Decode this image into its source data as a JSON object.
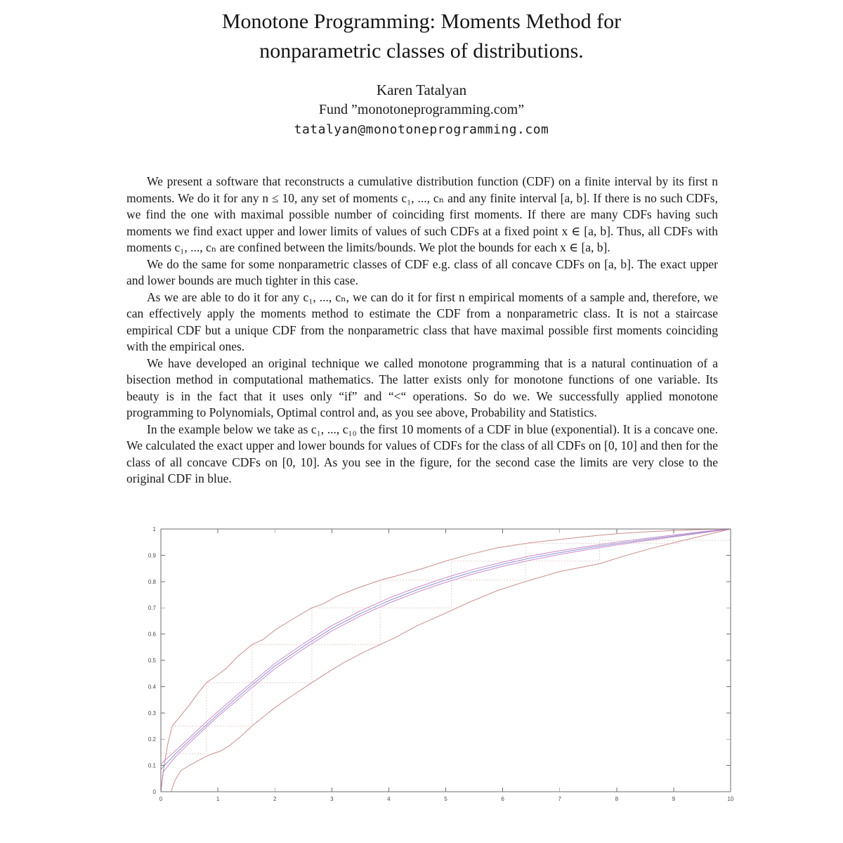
{
  "paper": {
    "title_line1": "Monotone Programming: Moments Method for",
    "title_line2": "nonparametric classes of distributions.",
    "author": "Karen Tatalyan",
    "affiliation": "Fund ”monotoneprogramming.com”",
    "email": "tatalyan@monotoneprogramming.com",
    "paragraphs": [
      "We present a software that reconstructs a cumulative distribution function (CDF) on a finite interval by its first n moments. We do it for any n ≤ 10, any set of moments c₁, ..., cₙ and any finite interval [a, b]. If there is no such CDFs, we find the one with maximal possible number of coinciding first moments. If there are many CDFs having such moments we find exact upper and lower limits of values of such CDFs at a fixed point x ∈ [a, b]. Thus, all CDFs with moments c₁, ..., cₙ are confined between the limits/bounds. We plot the bounds for each x ∈ [a, b].",
      "We do the same for some nonparametric classes of CDF e.g. class of all concave CDFs on [a, b]. The exact upper and lower bounds are much tighter in this case.",
      "As we are able to do it for any c₁, ..., cₙ, we can do it for first n empirical moments of a sample and, therefore, we can effectively apply the moments method to estimate the CDF from a nonparametric class. It is not a staircase empirical CDF but a unique CDF from the nonparametric class that have maximal possible first moments coinciding with the empirical ones.",
      "We have developed an original technique we called monotone programming that is a natural continuation of a bisection method in computational mathematics. The latter exists only for monotone functions of one variable. Its beauty is in the fact that it uses only “if” and “<“ operations. So do we. We successfully applied monotone programming to Polynomials, Optimal control and, as you see above, Probability and Statistics.",
      "In the example below we take as c₁, ..., c₁₀ the first 10 moments of a CDF in blue (exponential). It is a concave one. We calculated the exact upper and lower bounds for values of CDFs for the class of all CDFs on [0, 10] and then for the class of all concave CDFs on [0, 10]. As you see in the figure, for the second case the limits are very close to the original CDF in blue."
    ]
  },
  "chart_data": {
    "type": "line",
    "title": "",
    "xlabel": "",
    "ylabel": "",
    "xlim": [
      0,
      10
    ],
    "ylim": [
      0,
      1
    ],
    "grid": false,
    "legend_position": "none",
    "axis_color": "#6e6e6e",
    "x_ticks": [
      0,
      1,
      2,
      3,
      4,
      5,
      6,
      7,
      8,
      9,
      10
    ],
    "x_tick_labels": [
      "0",
      "1",
      "2",
      "3",
      "4",
      "5",
      "6",
      "7",
      "8",
      "9",
      "10"
    ],
    "y_ticks": [
      0,
      0.1,
      0.2,
      0.3,
      0.4,
      0.5,
      0.6,
      0.7,
      0.8,
      0.9,
      1
    ],
    "y_tick_labels": [
      "0",
      "0.1",
      "0.2",
      "0.3",
      "0.4",
      "0.5",
      "0.6",
      "0.7",
      "0.8",
      "0.9",
      "1"
    ],
    "series": [
      {
        "name": "upper-bound-all-cdfs",
        "color": "#c4807f",
        "style": "solid",
        "points": [
          [
            0,
            0
          ],
          [
            0.05,
            0.09
          ],
          [
            0.12,
            0.18
          ],
          [
            0.2,
            0.25
          ],
          [
            0.35,
            0.29
          ],
          [
            0.5,
            0.33
          ],
          [
            0.65,
            0.375
          ],
          [
            0.8,
            0.415
          ],
          [
            1.0,
            0.445
          ],
          [
            1.15,
            0.47
          ],
          [
            1.35,
            0.515
          ],
          [
            1.6,
            0.56
          ],
          [
            1.8,
            0.58
          ],
          [
            2.0,
            0.615
          ],
          [
            2.3,
            0.655
          ],
          [
            2.65,
            0.7
          ],
          [
            2.85,
            0.715
          ],
          [
            3.1,
            0.745
          ],
          [
            3.45,
            0.775
          ],
          [
            3.85,
            0.805
          ],
          [
            4.2,
            0.825
          ],
          [
            4.6,
            0.85
          ],
          [
            5.0,
            0.878
          ],
          [
            5.4,
            0.902
          ],
          [
            5.9,
            0.928
          ],
          [
            6.5,
            0.948
          ],
          [
            7.0,
            0.96
          ],
          [
            7.5,
            0.972
          ],
          [
            8.0,
            0.982
          ],
          [
            8.5,
            0.989
          ],
          [
            9.0,
            0.994
          ],
          [
            9.5,
            0.998
          ],
          [
            10,
            1
          ]
        ]
      },
      {
        "name": "lower-bound-all-cdfs",
        "color": "#c4807f",
        "style": "solid",
        "points": [
          [
            0,
            0
          ],
          [
            0.18,
            0
          ],
          [
            0.25,
            0.045
          ],
          [
            0.35,
            0.08
          ],
          [
            0.5,
            0.1
          ],
          [
            0.65,
            0.118
          ],
          [
            0.85,
            0.14
          ],
          [
            1.05,
            0.155
          ],
          [
            1.2,
            0.175
          ],
          [
            1.4,
            0.21
          ],
          [
            1.6,
            0.25
          ],
          [
            1.8,
            0.285
          ],
          [
            2.0,
            0.32
          ],
          [
            2.3,
            0.365
          ],
          [
            2.65,
            0.415
          ],
          [
            2.9,
            0.45
          ],
          [
            3.2,
            0.49
          ],
          [
            3.55,
            0.53
          ],
          [
            3.85,
            0.56
          ],
          [
            4.1,
            0.585
          ],
          [
            4.5,
            0.632
          ],
          [
            5.0,
            0.68
          ],
          [
            5.4,
            0.72
          ],
          [
            5.9,
            0.765
          ],
          [
            6.4,
            0.8
          ],
          [
            7.0,
            0.838
          ],
          [
            7.7,
            0.868
          ],
          [
            8.1,
            0.895
          ],
          [
            8.6,
            0.926
          ],
          [
            9.1,
            0.953
          ],
          [
            9.6,
            0.979
          ],
          [
            10,
            1
          ]
        ]
      },
      {
        "name": "upper-bound-concave",
        "color": "#c77bc3",
        "style": "solid",
        "points": [
          [
            0,
            0.105
          ],
          [
            0.25,
            0.155
          ],
          [
            0.5,
            0.205
          ],
          [
            0.75,
            0.256
          ],
          [
            1,
            0.305
          ],
          [
            1.5,
            0.398
          ],
          [
            2,
            0.488
          ],
          [
            2.5,
            0.563
          ],
          [
            3,
            0.632
          ],
          [
            3.5,
            0.688
          ],
          [
            4,
            0.737
          ],
          [
            4.5,
            0.778
          ],
          [
            5,
            0.815
          ],
          [
            5.5,
            0.847
          ],
          [
            6,
            0.874
          ],
          [
            6.5,
            0.898
          ],
          [
            7,
            0.917
          ],
          [
            7.5,
            0.934
          ],
          [
            8,
            0.95
          ],
          [
            8.5,
            0.964
          ],
          [
            9,
            0.977
          ],
          [
            9.5,
            0.99
          ],
          [
            10,
            1
          ]
        ]
      },
      {
        "name": "cdf-exponential-blue",
        "color": "#7b86cf",
        "style": "solid",
        "points": [
          [
            0,
            0.085
          ],
          [
            0.25,
            0.143
          ],
          [
            0.5,
            0.195
          ],
          [
            0.75,
            0.245
          ],
          [
            1,
            0.295
          ],
          [
            1.5,
            0.388
          ],
          [
            2,
            0.478
          ],
          [
            2.5,
            0.553
          ],
          [
            3,
            0.622
          ],
          [
            3.5,
            0.678
          ],
          [
            4,
            0.727
          ],
          [
            4.5,
            0.769
          ],
          [
            5,
            0.806
          ],
          [
            5.5,
            0.838
          ],
          [
            6,
            0.866
          ],
          [
            6.5,
            0.89
          ],
          [
            7,
            0.91
          ],
          [
            7.5,
            0.928
          ],
          [
            8,
            0.944
          ],
          [
            8.5,
            0.959
          ],
          [
            9,
            0.973
          ],
          [
            9.5,
            0.987
          ],
          [
            10,
            1
          ]
        ]
      },
      {
        "name": "lower-bound-concave",
        "color": "#c77bc3",
        "style": "solid",
        "points": [
          [
            0,
            0
          ],
          [
            0.04,
            0.075
          ],
          [
            0.25,
            0.132
          ],
          [
            0.5,
            0.185
          ],
          [
            0.75,
            0.236
          ],
          [
            1,
            0.286
          ],
          [
            1.5,
            0.378
          ],
          [
            2,
            0.468
          ],
          [
            2.5,
            0.543
          ],
          [
            3,
            0.612
          ],
          [
            3.5,
            0.669
          ],
          [
            4,
            0.718
          ],
          [
            4.5,
            0.76
          ],
          [
            5,
            0.797
          ],
          [
            5.5,
            0.83
          ],
          [
            6,
            0.858
          ],
          [
            6.5,
            0.882
          ],
          [
            7,
            0.903
          ],
          [
            7.5,
            0.922
          ],
          [
            8,
            0.939
          ],
          [
            8.5,
            0.955
          ],
          [
            9,
            0.97
          ],
          [
            9.5,
            0.985
          ],
          [
            10,
            1
          ]
        ]
      },
      {
        "name": "staircase-dotted-1",
        "color": "#dcb7b6",
        "style": "dotted",
        "points": [
          [
            0,
            0.145
          ],
          [
            0.8,
            0.145
          ],
          [
            0.8,
            0.415
          ],
          [
            2.65,
            0.415
          ],
          [
            2.65,
            0.7
          ],
          [
            5.1,
            0.7
          ],
          [
            5.1,
            0.878
          ],
          [
            7.7,
            0.878
          ],
          [
            7.7,
            0.957
          ],
          [
            10,
            0.957
          ]
        ]
      },
      {
        "name": "staircase-dotted-2",
        "color": "#dcb7b6",
        "style": "dotted",
        "points": [
          [
            0.2,
            0.25
          ],
          [
            1.6,
            0.25
          ],
          [
            1.6,
            0.56
          ],
          [
            3.85,
            0.56
          ],
          [
            3.85,
            0.805
          ],
          [
            6.4,
            0.805
          ],
          [
            6.4,
            0.945
          ],
          [
            9.1,
            0.945
          ]
        ]
      }
    ]
  }
}
